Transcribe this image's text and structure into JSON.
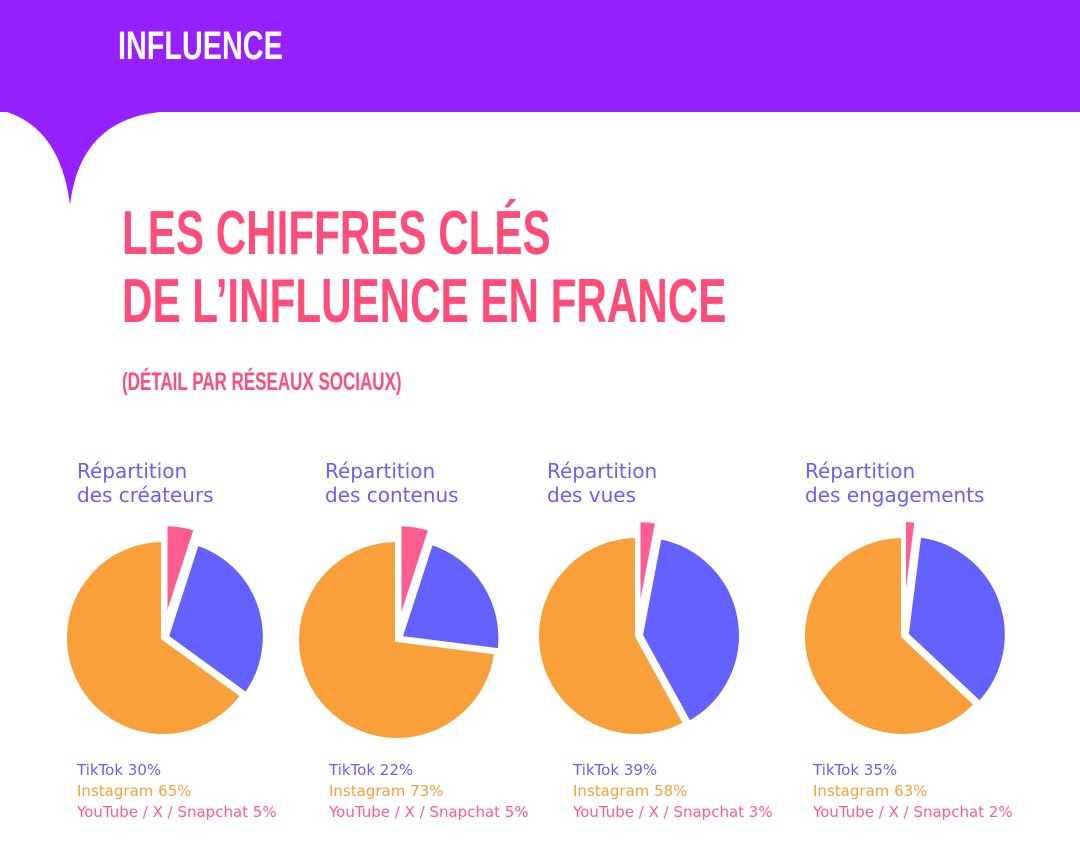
{
  "header": {
    "brand": "INFLUENCE"
  },
  "title": {
    "line1": "LES CHIFFRES CLÉS",
    "line2": "DE L’INFLUENCE EN FRANCE",
    "subtitle": "(DÉTAIL PAR RÉSEAUX SOCIAUX)"
  },
  "colors": {
    "tiktok": "#6461FF",
    "instagram": "#F9A03A",
    "youtube": "#FF5C8F",
    "brand": "#9620FF"
  },
  "chart_data": [
    {
      "type": "pie",
      "title": [
        "Répartition",
        "des créateurs"
      ],
      "slices": [
        {
          "label": "TikTok",
          "value": 30,
          "text": "TikTok 30%"
        },
        {
          "label": "Instagram",
          "value": 65,
          "text": "Instagram  65%"
        },
        {
          "label": "YouTube / X / Snapchat",
          "value": 5,
          "text": "YouTube / X / Snapchat 5%"
        }
      ]
    },
    {
      "type": "pie",
      "title": [
        "Répartition",
        "des contenus"
      ],
      "slices": [
        {
          "label": "TikTok",
          "value": 22,
          "text": "TikTok 22%"
        },
        {
          "label": "Instagram",
          "value": 73,
          "text": "Instagram  73%"
        },
        {
          "label": "YouTube / X / Snapchat",
          "value": 5,
          "text": "YouTube / X / Snapchat 5%"
        }
      ]
    },
    {
      "type": "pie",
      "title": [
        "Répartition",
        "des vues"
      ],
      "slices": [
        {
          "label": "TikTok",
          "value": 39,
          "text": "TikTok 39%"
        },
        {
          "label": "Instagram",
          "value": 58,
          "text": "Instagram  58%"
        },
        {
          "label": "YouTube / X / Snapchat",
          "value": 3,
          "text": "YouTube / X / Snapchat 3%"
        }
      ]
    },
    {
      "type": "pie",
      "title": [
        "Répartition",
        "des engagements"
      ],
      "slices": [
        {
          "label": "TikTok",
          "value": 35,
          "text": "TikTok 35%"
        },
        {
          "label": "Instagram",
          "value": 63,
          "text": "Instagram  63%"
        },
        {
          "label": "YouTube / X / Snapchat",
          "value": 2,
          "text": "YouTube / X / Snapchat 2%"
        }
      ]
    }
  ]
}
